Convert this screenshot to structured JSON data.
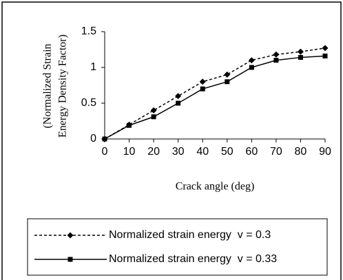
{
  "chart_data": {
    "type": "line",
    "ylabel": [
      "(Normalized Strain",
      "Energy Density Factor)"
    ],
    "xlabel": "Crack angle (deg)",
    "x": [
      0,
      10,
      20,
      30,
      40,
      50,
      60,
      70,
      80,
      90
    ],
    "series": [
      {
        "name": "Normalized strain energy  v = 0.3",
        "color": "#000000",
        "linestyle": "dashed",
        "marker": "diamond",
        "values": [
          0,
          0.2,
          0.4,
          0.6,
          0.8,
          0.9,
          1.1,
          1.18,
          1.22,
          1.27
        ]
      },
      {
        "name": "Normalized strain energy  v = 0.33",
        "color": "#000000",
        "linestyle": "solid",
        "marker": "square",
        "values": [
          0,
          0.19,
          0.31,
          0.5,
          0.7,
          0.8,
          1.0,
          1.1,
          1.14,
          1.16
        ]
      }
    ],
    "xlim": [
      0,
      90
    ],
    "xticks": [
      0,
      10,
      20,
      30,
      40,
      50,
      60,
      70,
      80,
      90
    ],
    "ylim": [
      0,
      1.5
    ],
    "yticks": [
      0,
      0.5,
      1,
      1.5
    ],
    "legend": "bottom",
    "grid": false
  }
}
